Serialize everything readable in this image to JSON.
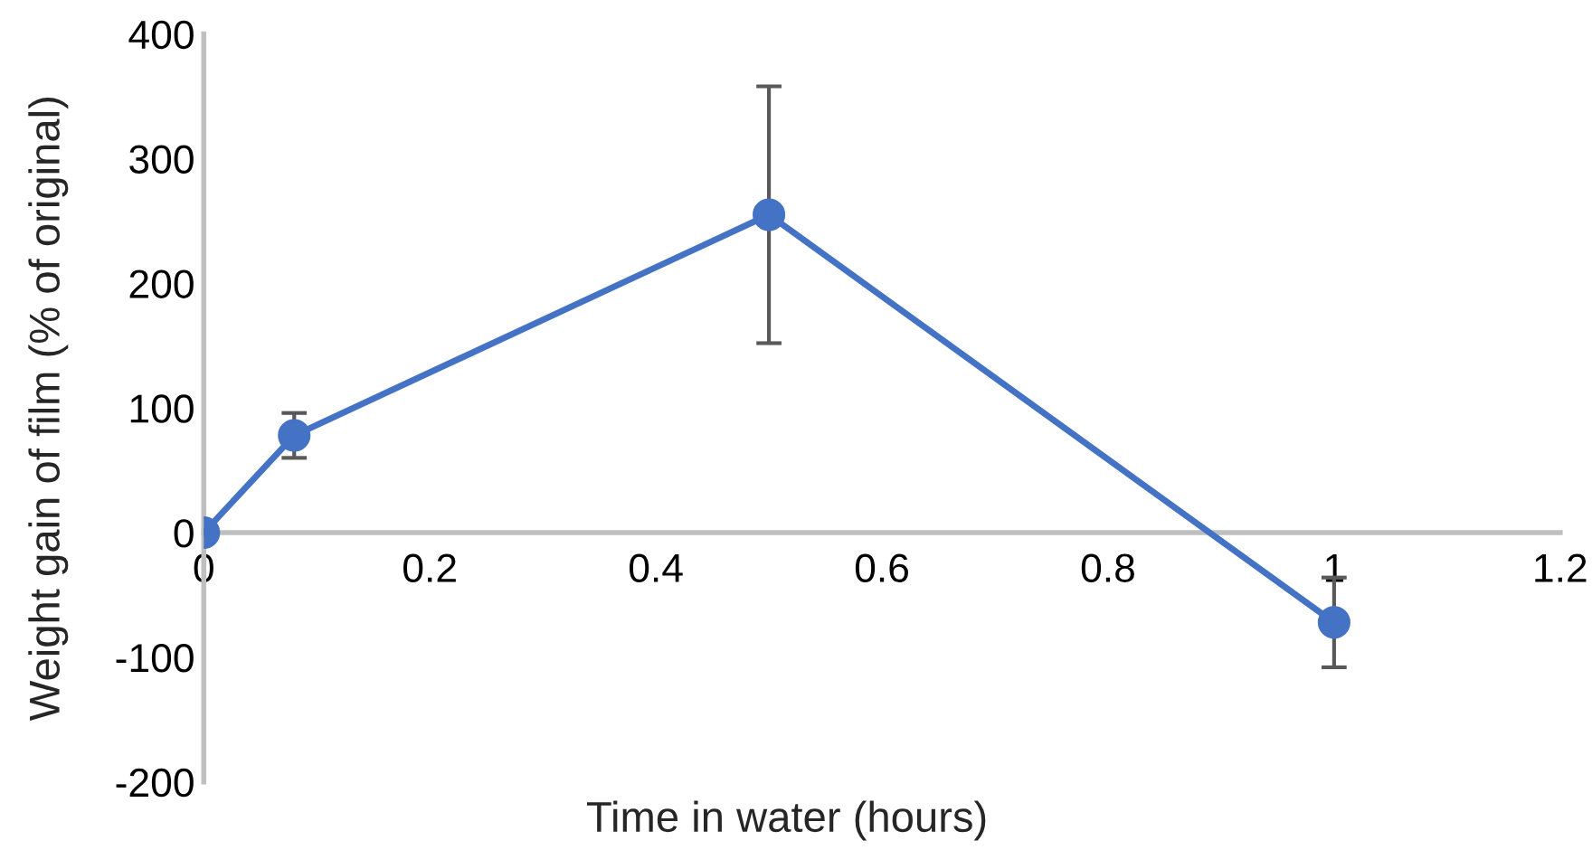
{
  "chart_data": {
    "type": "line",
    "xlabel": "Time in water (hours)",
    "ylabel": "Weight gain of film (% of original)",
    "x": [
      0,
      0.08,
      0.5,
      1
    ],
    "series": [
      {
        "color": "#4472c4",
        "values": [
          0,
          78,
          255,
          -72
        ],
        "errors": [
          null,
          18,
          103,
          36
        ]
      }
    ],
    "xlim": [
      0,
      1.2
    ],
    "xticks": [
      0,
      0.2,
      0.4,
      0.6,
      0.8,
      1,
      1.2
    ],
    "ylim": [
      -200,
      400
    ],
    "yticks": [
      -200,
      -100,
      0,
      100,
      200,
      300,
      400
    ],
    "marker": "circle",
    "line_style": "solid",
    "grid": false,
    "legend": false
  }
}
